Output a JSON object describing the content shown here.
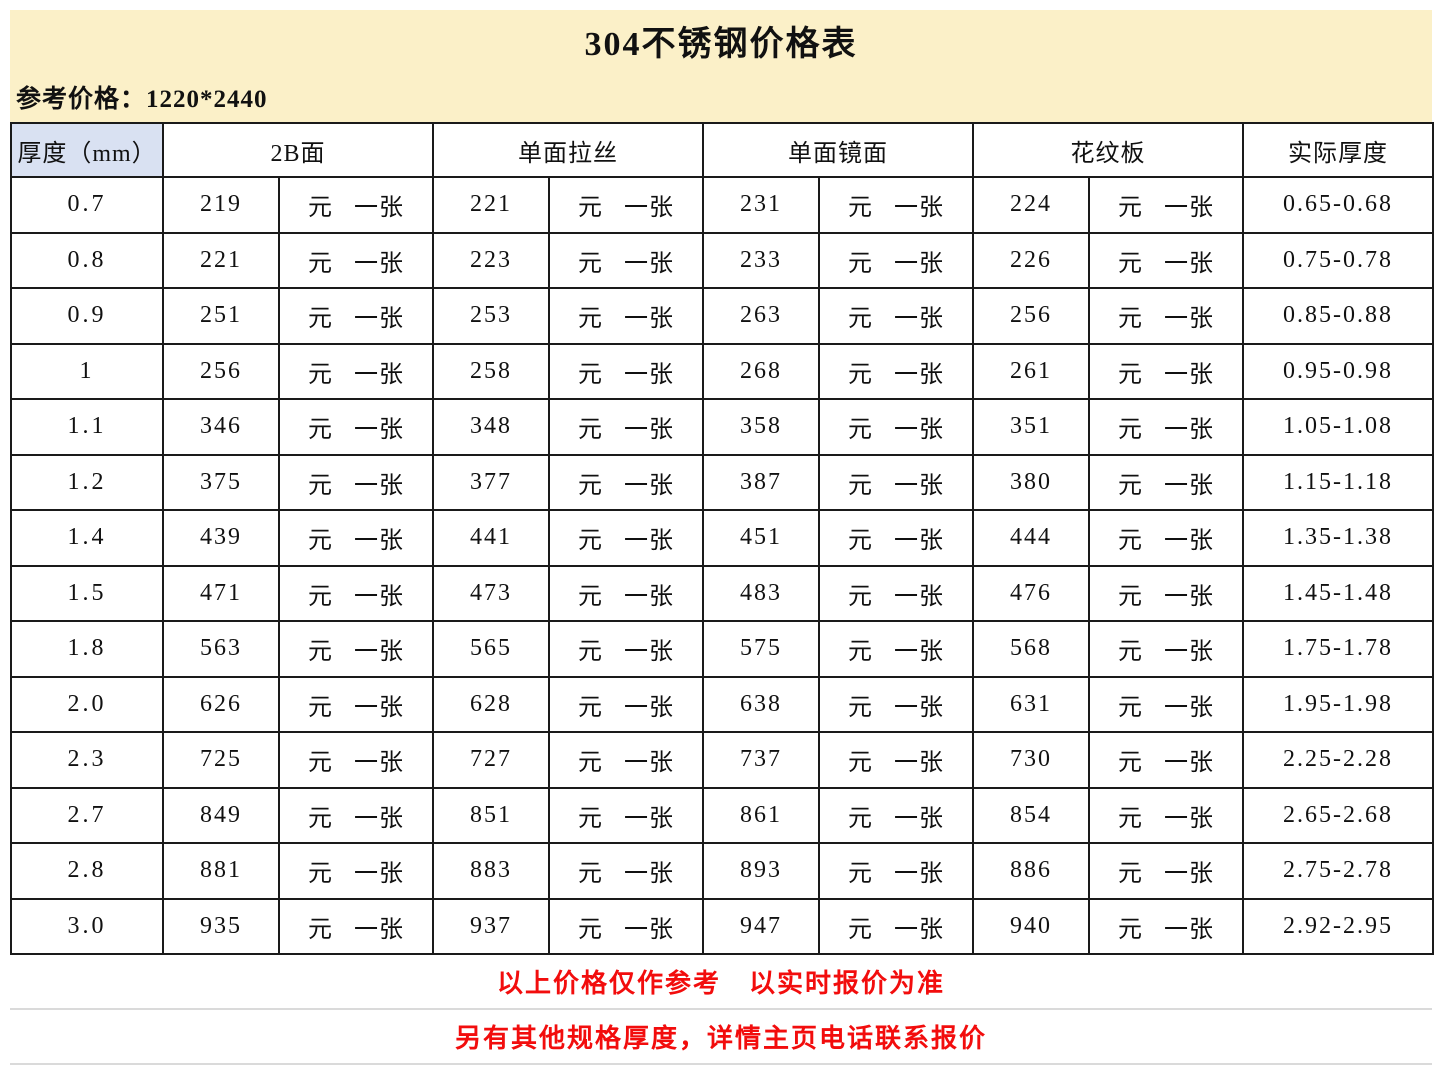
{
  "title": "304不锈钢价格表",
  "subtitle": "参考价格：1220*2440",
  "colors": {
    "band_yellow": "#FBF0C8",
    "thickness_blue": "#D9E1F2",
    "price_red": "#F20D0D",
    "grid_black": "#1A1A1A",
    "sub_divider_gray": "#D9D9D9"
  },
  "table": {
    "headers": [
      "厚度（mm）",
      "2B面",
      "单面拉丝",
      "单面镜面",
      "花纹板",
      "实际厚度"
    ],
    "unit_label": "元 一张",
    "rows": [
      {
        "thickness": "0.7",
        "prices": [
          "219",
          "221",
          "231",
          "224"
        ],
        "actual": "0.65-0.68"
      },
      {
        "thickness": "0.8",
        "prices": [
          "221",
          "223",
          "233",
          "226"
        ],
        "actual": "0.75-0.78"
      },
      {
        "thickness": "0.9",
        "prices": [
          "251",
          "253",
          "263",
          "256"
        ],
        "actual": "0.85-0.88"
      },
      {
        "thickness": "1",
        "prices": [
          "256",
          "258",
          "268",
          "261"
        ],
        "actual": "0.95-0.98"
      },
      {
        "thickness": "1.1",
        "prices": [
          "346",
          "348",
          "358",
          "351"
        ],
        "actual": "1.05-1.08"
      },
      {
        "thickness": "1.2",
        "prices": [
          "375",
          "377",
          "387",
          "380"
        ],
        "actual": "1.15-1.18"
      },
      {
        "thickness": "1.4",
        "prices": [
          "439",
          "441",
          "451",
          "444"
        ],
        "actual": "1.35-1.38"
      },
      {
        "thickness": "1.5",
        "prices": [
          "471",
          "473",
          "483",
          "476"
        ],
        "actual": "1.45-1.48"
      },
      {
        "thickness": "1.8",
        "prices": [
          "563",
          "565",
          "575",
          "568"
        ],
        "actual": "1.75-1.78"
      },
      {
        "thickness": "2.0",
        "prices": [
          "626",
          "628",
          "638",
          "631"
        ],
        "actual": "1.95-1.98"
      },
      {
        "thickness": "2.3",
        "prices": [
          "725",
          "727",
          "737",
          "730"
        ],
        "actual": "2.25-2.28"
      },
      {
        "thickness": "2.7",
        "prices": [
          "849",
          "851",
          "861",
          "854"
        ],
        "actual": "2.65-2.68"
      },
      {
        "thickness": "2.8",
        "prices": [
          "881",
          "883",
          "893",
          "886"
        ],
        "actual": "2.75-2.78"
      },
      {
        "thickness": "3.0",
        "prices": [
          "935",
          "937",
          "947",
          "940"
        ],
        "actual": "2.92-2.95"
      }
    ]
  },
  "footer": {
    "line1": "以上价格仅作参考　以实时报价为准",
    "line2": "另有其他规格厚度，详情主页电话联系报价"
  }
}
